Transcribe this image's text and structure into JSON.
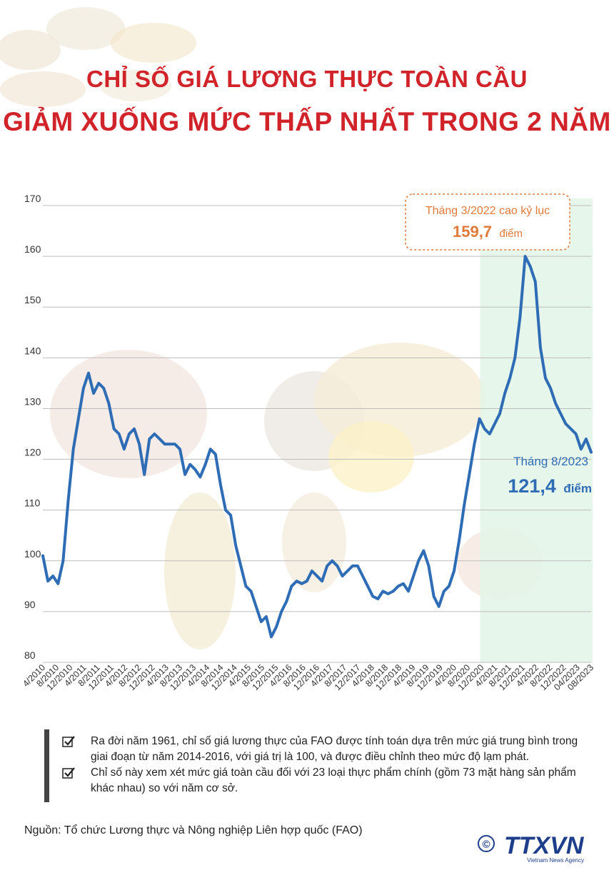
{
  "header": {
    "title_line1": "CHỈ SỐ GIÁ LƯƠNG THỰC TOÀN CẦU",
    "title_line2": "GIẢM XUỐNG MỨC THẤP NHẤT TRONG 2 NĂM"
  },
  "colors": {
    "title": "#d1232a",
    "line": "#2e6db5",
    "peak_callout": "#e07a3a",
    "last_callout": "#2e6db5",
    "highlight_band": "#e3f4e6"
  },
  "chart_data": {
    "type": "line",
    "title": "Chỉ số giá lương thực toàn cầu",
    "xlabel": "",
    "ylabel": "",
    "ylim": [
      80,
      170
    ],
    "yticks": [
      80,
      90,
      100,
      110,
      120,
      130,
      140,
      150,
      160,
      170
    ],
    "grid": true,
    "start": "4/2010",
    "end": "08/2023",
    "x_tick_labels": [
      "4/2010",
      "8/2010",
      "12/2010",
      "4/2011",
      "8/2011",
      "12/2011",
      "4/2012",
      "8/2012",
      "12/2012",
      "4/2013",
      "8/2013",
      "12/2013",
      "4/2014",
      "8/2014",
      "12/2014",
      "4/2015",
      "8/2015",
      "12/2015",
      "4/2016",
      "8/2016",
      "12/2016",
      "4/2017",
      "8/2017",
      "12/2017",
      "4/2018",
      "8/2018",
      "12/2018",
      "4/2019",
      "8/2019",
      "12/2019",
      "4/2020",
      "8/2020",
      "12/2020",
      "4/2021",
      "8/2021",
      "12/2021",
      "4/2022",
      "8/2022",
      "12/2022",
      "04/2023",
      "08/2023"
    ],
    "highlight_from": "12/2020",
    "series": [
      {
        "name": "Chỉ số giá lương thực FAO",
        "values": [
          101,
          96,
          97,
          95.5,
          100,
          112,
          122,
          128,
          134,
          137,
          133,
          135,
          134,
          131,
          126,
          125,
          122,
          125,
          126,
          123,
          117,
          124,
          125,
          124,
          123,
          123,
          123,
          122,
          117,
          119,
          118,
          116.5,
          119,
          122,
          121,
          115,
          110,
          109,
          103,
          99,
          95,
          94,
          91,
          88,
          89,
          85,
          87,
          90,
          92,
          95,
          96,
          95.5,
          96,
          98,
          97,
          96,
          99,
          100,
          99,
          97,
          98,
          99,
          99,
          97,
          95,
          93,
          92.5,
          94,
          93.5,
          94,
          95,
          95.5,
          94,
          97,
          100,
          102,
          99,
          93,
          91,
          94,
          95,
          98,
          104,
          111,
          117,
          123,
          128,
          126,
          125,
          127,
          129,
          133,
          136,
          140,
          148,
          160,
          158,
          155,
          142,
          136,
          134,
          131,
          129,
          127,
          126,
          125,
          122,
          124,
          121.4
        ]
      }
    ],
    "annotations": [
      {
        "label": "Tháng 3/2022 cao kỷ lục",
        "value": "159,7",
        "unit": "điểm"
      },
      {
        "label": "Tháng 8/2023",
        "value": "121,4",
        "unit": "điểm"
      }
    ]
  },
  "notes": [
    "Ra đời năm 1961, chỉ số giá lương thực của FAO được tính toán dựa trên mức giá trung bình trong giai đoạn từ năm 2014-2016, với giá trị là 100, và được điều chỉnh theo mức độ lạm phát.",
    "Chỉ số này xem xét mức giá toàn cầu đối với 23 loại thực phẩm chính (gồm 73 mặt hàng sản phẩm khác nhau) so với năm cơ sở."
  ],
  "source": "Nguồn: Tổ chức Lương thực và Nông nghiệp Liên hợp quốc (FAO)",
  "logo": {
    "copyright": "©",
    "brand": "TTXVN",
    "tagline": "Vietnam News Agency"
  }
}
